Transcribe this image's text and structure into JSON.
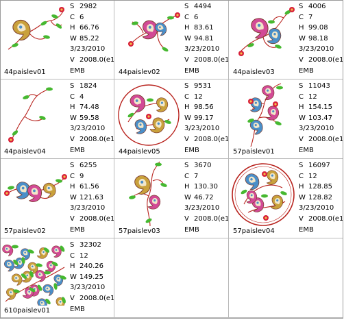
{
  "designs": [
    {
      "name": "44paislev01",
      "stitches": "2982",
      "colors": "6",
      "height": "66.76",
      "width": "85.22",
      "date": "3/23/2010",
      "version": "2008.0(e1",
      "format": "EMB"
    },
    {
      "name": "44paislev02",
      "stitches": "4494",
      "colors": "6",
      "height": "83.61",
      "width": "94.81",
      "date": "3/23/2010",
      "version": "2008.0(e1",
      "format": "EMB"
    },
    {
      "name": "44paislev03",
      "stitches": "4006",
      "colors": "7",
      "height": "99.08",
      "width": "98.18",
      "date": "3/23/2010",
      "version": "2008.0(e1",
      "format": "EMB"
    },
    {
      "name": "44paislev04",
      "stitches": "1824",
      "colors": "4",
      "height": "74.48",
      "width": "59.58",
      "date": "3/23/2010",
      "version": "2008.0(e1",
      "format": "EMB"
    },
    {
      "name": "44paislev05",
      "stitches": "9531",
      "colors": "12",
      "height": "98.56",
      "width": "99.17",
      "date": "3/23/2010",
      "version": "2008.0(e1",
      "format": "EMB"
    },
    {
      "name": "57paislev01",
      "stitches": "11043",
      "colors": "12",
      "height": "154.15",
      "width": "103.47",
      "date": "3/23/2010",
      "version": "2008.0(e1",
      "format": "EMB"
    },
    {
      "name": "57paislev02",
      "stitches": "6255",
      "colors": "9",
      "height": "61.56",
      "width": "121.63",
      "date": "3/23/2010",
      "version": "2008.0(e1",
      "format": "EMB"
    },
    {
      "name": "57paislev03",
      "stitches": "3670",
      "colors": "7",
      "height": "130.30",
      "width": "46.72",
      "date": "3/23/2010",
      "version": "2008.0(e1",
      "format": "EMB"
    },
    {
      "name": "57paislev04",
      "stitches": "16097",
      "colors": "12",
      "height": "128.85",
      "width": "128.82",
      "date": "3/23/2010",
      "version": "2008.0(e1",
      "format": "EMB"
    },
    {
      "name": "610paislev01",
      "stitches": "32302",
      "colors": "12",
      "height": "240.26",
      "width": "149.25",
      "date": "3/23/2010",
      "version": "2008.0(e1",
      "format": "EMB"
    }
  ],
  "labels": {
    "s": "S",
    "c": "C",
    "h": "H",
    "w": "W",
    "v": "V"
  },
  "colors": {
    "stem": "#b8231e",
    "leaf": "#46b830",
    "paisley_pink": "#d24a96",
    "paisley_blue": "#4a8fc9",
    "paisley_tan": "#c9a13c",
    "flower_red": "#d8203a",
    "grid_line": "#b9b9b9"
  },
  "icons": [
    "embroidery-thumbnail-icon"
  ]
}
